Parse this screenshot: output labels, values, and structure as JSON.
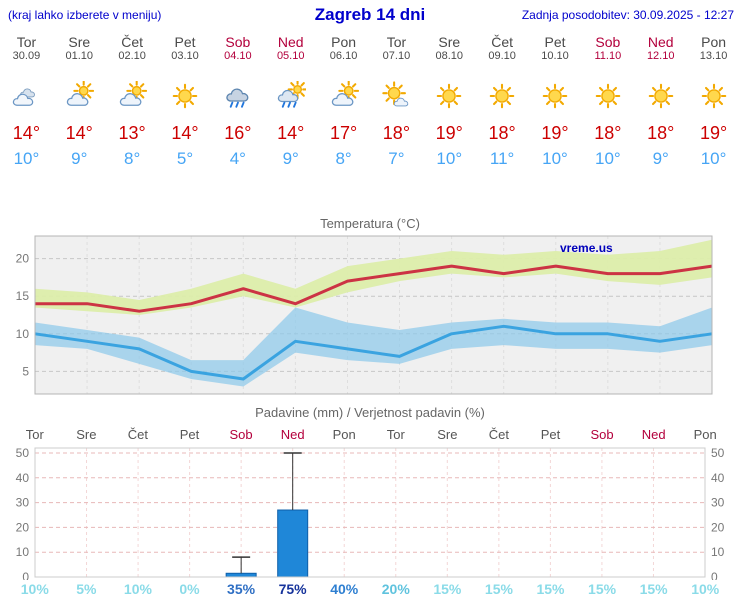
{
  "header": {
    "left_note": "(kraj lahko izberete v meniju)",
    "title": "Zagreb 14 dni",
    "updated": "Zadnja posodobitev: 30.09.2025 - 12:27"
  },
  "colors": {
    "header_blue": "#0000cc",
    "day_gray": "#4a4a4a",
    "weekend_red": "#b3003c",
    "temp_high_red": "#cc0000",
    "temp_low_blue": "#46a5f5",
    "chart_bg": "#f0f0f0",
    "max_line": "#cc3344",
    "max_band": "#dcedaa",
    "min_line": "#3aa3e0",
    "min_band": "#8ec9ea",
    "bar_blue": "#1f87d8",
    "precip_grid_pink": "#e8b8b8",
    "watermark_blue": "#0000bb"
  },
  "days": [
    {
      "name": "Tor",
      "date": "30.09",
      "weekend": false,
      "icon": "cloudy",
      "high": "14°",
      "low": "10°",
      "prob": "10%",
      "prob_color": "#8adbe8"
    },
    {
      "name": "Sre",
      "date": "01.10",
      "weekend": false,
      "icon": "partly-cloudy",
      "high": "14°",
      "low": "9°",
      "prob": "5%",
      "prob_color": "#8adbe8"
    },
    {
      "name": "Čet",
      "date": "02.10",
      "weekend": false,
      "icon": "partly-cloudy",
      "high": "13°",
      "low": "8°",
      "prob": "10%",
      "prob_color": "#8adbe8"
    },
    {
      "name": "Pet",
      "date": "03.10",
      "weekend": false,
      "icon": "sunny",
      "high": "14°",
      "low": "5°",
      "prob": "0%",
      "prob_color": "#8adbe8"
    },
    {
      "name": "Sob",
      "date": "04.10",
      "weekend": true,
      "icon": "rain",
      "high": "16°",
      "low": "4°",
      "prob": "35%",
      "prob_color": "#2f6fc4"
    },
    {
      "name": "Ned",
      "date": "05.10",
      "weekend": true,
      "icon": "showers",
      "high": "14°",
      "low": "9°",
      "prob": "75%",
      "prob_color": "#16339b"
    },
    {
      "name": "Pon",
      "date": "06.10",
      "weekend": false,
      "icon": "partly-cloudy",
      "high": "17°",
      "low": "8°",
      "prob": "40%",
      "prob_color": "#2e7fd1"
    },
    {
      "name": "Tor",
      "date": "07.10",
      "weekend": false,
      "icon": "mostly-sunny",
      "high": "18°",
      "low": "7°",
      "prob": "20%",
      "prob_color": "#5fc3de"
    },
    {
      "name": "Sre",
      "date": "08.10",
      "weekend": false,
      "icon": "sunny",
      "high": "19°",
      "low": "10°",
      "prob": "15%",
      "prob_color": "#8adbe8"
    },
    {
      "name": "Čet",
      "date": "09.10",
      "weekend": false,
      "icon": "sunny",
      "high": "18°",
      "low": "11°",
      "prob": "15%",
      "prob_color": "#8adbe8"
    },
    {
      "name": "Pet",
      "date": "10.10",
      "weekend": false,
      "icon": "sunny",
      "high": "19°",
      "low": "10°",
      "prob": "15%",
      "prob_color": "#8adbe8"
    },
    {
      "name": "Sob",
      "date": "11.10",
      "weekend": true,
      "icon": "sunny",
      "high": "18°",
      "low": "10°",
      "prob": "15%",
      "prob_color": "#8adbe8"
    },
    {
      "name": "Ned",
      "date": "12.10",
      "weekend": true,
      "icon": "sunny",
      "high": "18°",
      "low": "9°",
      "prob": "15%",
      "prob_color": "#8adbe8"
    },
    {
      "name": "Pon",
      "date": "13.10",
      "weekend": false,
      "icon": "sunny",
      "high": "19°",
      "low": "10°",
      "prob": "10%",
      "prob_color": "#8adbe8"
    }
  ],
  "chart_data": [
    {
      "type": "line",
      "title": "Temperatura (°C)",
      "watermark": "vreme.us",
      "categories": [
        "Tor",
        "Sre",
        "Čet",
        "Pet",
        "Sob",
        "Ned",
        "Pon",
        "Tor",
        "Sre",
        "Čet",
        "Pet",
        "Sob",
        "Ned",
        "Pon"
      ],
      "ylim": [
        2,
        23
      ],
      "yticks": [
        5,
        10,
        15,
        20
      ],
      "grid": true,
      "series": [
        {
          "name": "max",
          "values": [
            14,
            14,
            13,
            14,
            16,
            14,
            17,
            18,
            19,
            18,
            19,
            18,
            18,
            19
          ]
        },
        {
          "name": "min",
          "values": [
            10,
            9,
            8,
            5,
            4,
            9,
            8,
            7,
            10,
            11,
            10,
            10,
            9,
            10
          ]
        },
        {
          "name": "max_band_upper",
          "values": [
            16,
            15.5,
            14.5,
            16,
            18,
            16,
            19,
            20,
            21,
            20.5,
            21,
            20.5,
            21,
            22.5
          ]
        },
        {
          "name": "max_band_lower",
          "values": [
            13.5,
            13,
            12.5,
            13.5,
            15,
            13.5,
            15.5,
            17,
            18,
            17.5,
            18,
            17,
            16.5,
            17.5
          ]
        },
        {
          "name": "min_band_upper",
          "values": [
            11.5,
            10.5,
            9.5,
            6.5,
            6.5,
            13.5,
            11.5,
            10.5,
            11.5,
            12,
            11.5,
            11.5,
            11,
            13.5
          ]
        },
        {
          "name": "min_band_lower",
          "values": [
            8.5,
            8,
            6,
            4,
            3,
            7.5,
            6.5,
            6,
            8,
            8.5,
            8,
            8,
            7.5,
            8.5
          ]
        }
      ]
    },
    {
      "type": "bar",
      "title": "Padavine (mm) / Verjetnost padavin (%)",
      "categories": [
        "Tor",
        "Sre",
        "Čet",
        "Pet",
        "Sob",
        "Ned",
        "Pon",
        "Tor",
        "Sre",
        "Čet",
        "Pet",
        "Sob",
        "Ned",
        "Pon"
      ],
      "weekend_mask": [
        false,
        false,
        false,
        false,
        true,
        true,
        false,
        false,
        false,
        false,
        false,
        true,
        true,
        false
      ],
      "ylim": [
        0,
        52
      ],
      "yticks": [
        0,
        10,
        20,
        30,
        40,
        50
      ],
      "values": [
        0,
        0,
        0,
        0,
        1.5,
        27,
        0,
        0,
        0,
        0,
        0,
        0,
        0,
        0
      ],
      "whisker_max": [
        0,
        0,
        0,
        0,
        8,
        50,
        0,
        0,
        0,
        0,
        0,
        0,
        0,
        0
      ],
      "probabilities": [
        "10%",
        "5%",
        "10%",
        "0%",
        "35%",
        "75%",
        "40%",
        "20%",
        "15%",
        "15%",
        "15%",
        "15%",
        "15%",
        "10%"
      ]
    }
  ]
}
